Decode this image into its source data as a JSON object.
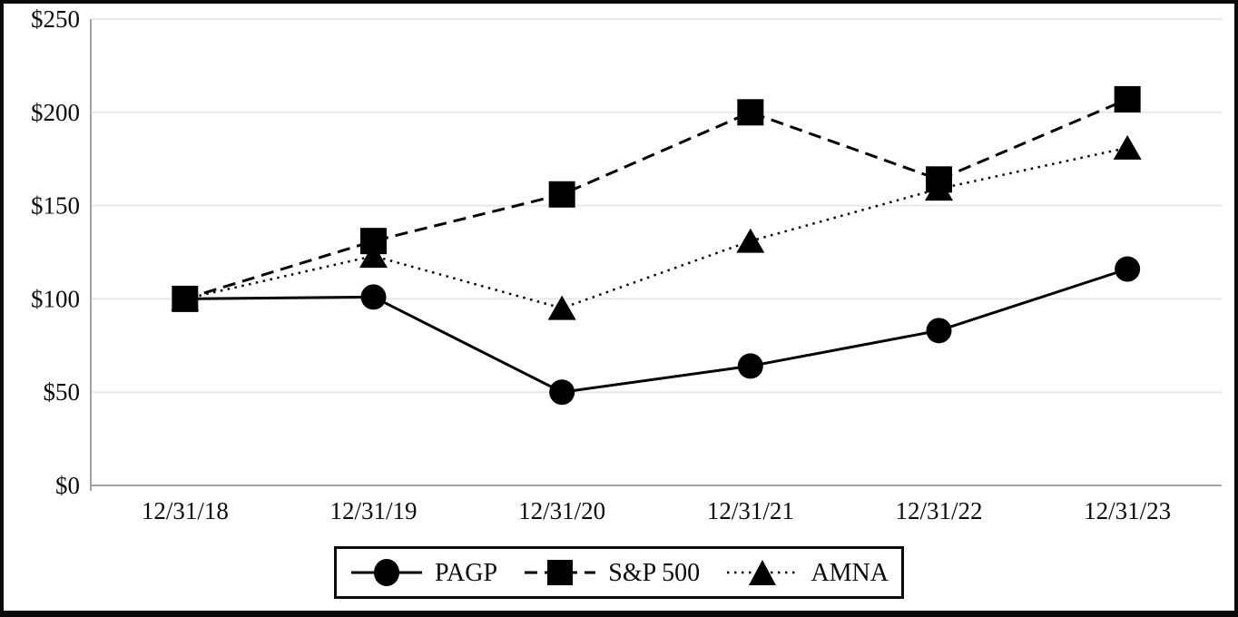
{
  "figure": {
    "description": "Total return stock performance line chart comparing PAGP, S&P 500 and AMNA indexed to $100 at 12/31/18"
  },
  "chart_data": {
    "type": "line",
    "categories": [
      "12/31/18",
      "12/31/19",
      "12/31/20",
      "12/31/21",
      "12/31/22",
      "12/31/23"
    ],
    "series": [
      {
        "name": "PAGP",
        "marker": "circle",
        "line_style": "solid",
        "values": [
          100,
          101,
          50,
          64,
          83,
          116
        ]
      },
      {
        "name": "S&P 500",
        "marker": "square",
        "line_style": "dashed",
        "values": [
          100,
          131,
          156,
          200,
          164,
          207
        ]
      },
      {
        "name": "AMNA",
        "marker": "triangle",
        "line_style": "dotted",
        "values": [
          100,
          123,
          95,
          131,
          159,
          181
        ]
      }
    ],
    "y_ticks": [
      {
        "label": "$0",
        "value": 0
      },
      {
        "label": "$50",
        "value": 50
      },
      {
        "label": "$100",
        "value": 100
      },
      {
        "label": "$150",
        "value": 150
      },
      {
        "label": "$200",
        "value": 200
      },
      {
        "label": "$250",
        "value": 250
      }
    ],
    "ylim": [
      0,
      250
    ],
    "xlabel": "",
    "ylabel": "",
    "title": "",
    "grid": true,
    "legend_position": "bottom-center",
    "colors": {
      "series": "#000000",
      "gridline": "#e8e8e8",
      "axis": "#a3a3a3",
      "background": "#ffffff",
      "border": "#0a0a0a"
    }
  }
}
